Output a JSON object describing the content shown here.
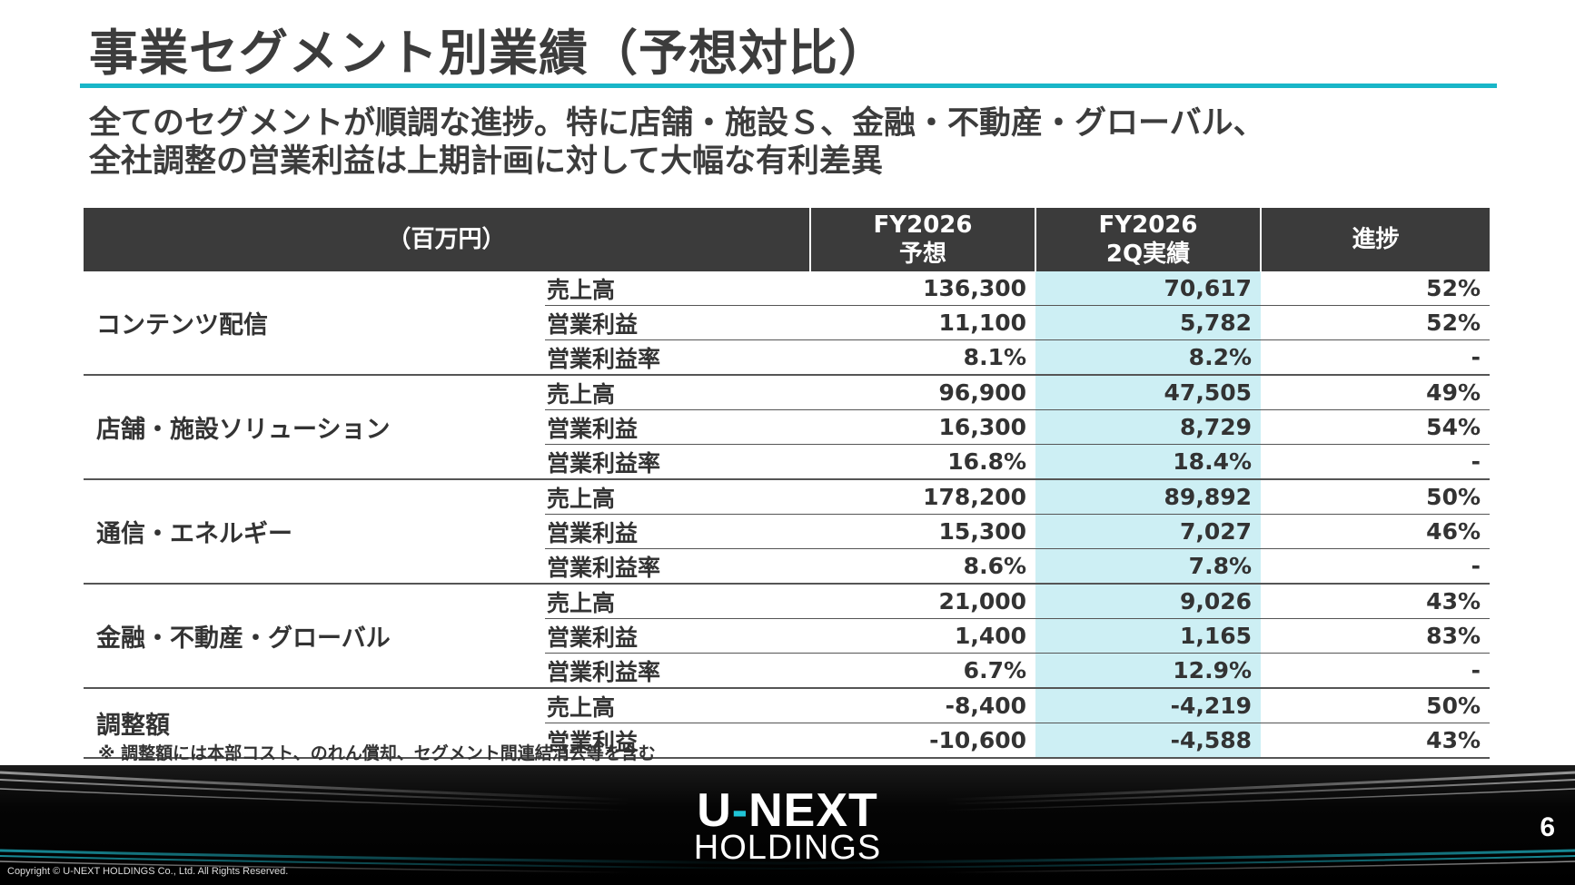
{
  "title": "事業セグメント別業績（予想対比）",
  "subtitle": {
    "line1": "全てのセグメントが順調な進捗。特に店舗・施設Ｓ、金融・不動産・グローバル、",
    "line2": "全社調整の営業利益は上期計画に対して大幅な有利差異"
  },
  "table": {
    "header": {
      "unit": "（百万円）",
      "col1_line1": "FY2026",
      "col1_line2": "予想",
      "col2_line1": "FY2026",
      "col2_line2": "2Q実績",
      "col3": "進捗"
    },
    "segments": [
      {
        "name": "コンテンツ配信",
        "rows": [
          {
            "metric": "売上高",
            "forecast": "136,300",
            "actual": "70,617",
            "progress": "52%"
          },
          {
            "metric": "営業利益",
            "forecast": "11,100",
            "actual": "5,782",
            "progress": "52%"
          },
          {
            "metric": "営業利益率",
            "forecast": "8.1%",
            "actual": "8.2%",
            "progress": "-"
          }
        ]
      },
      {
        "name": "店舗・施設ソリューション",
        "rows": [
          {
            "metric": "売上高",
            "forecast": "96,900",
            "actual": "47,505",
            "progress": "49%"
          },
          {
            "metric": "営業利益",
            "forecast": "16,300",
            "actual": "8,729",
            "progress": "54%"
          },
          {
            "metric": "営業利益率",
            "forecast": "16.8%",
            "actual": "18.4%",
            "progress": "-"
          }
        ]
      },
      {
        "name": "通信・エネルギー",
        "rows": [
          {
            "metric": "売上高",
            "forecast": "178,200",
            "actual": "89,892",
            "progress": "50%"
          },
          {
            "metric": "営業利益",
            "forecast": "15,300",
            "actual": "7,027",
            "progress": "46%"
          },
          {
            "metric": "営業利益率",
            "forecast": "8.6%",
            "actual": "7.8%",
            "progress": "-"
          }
        ]
      },
      {
        "name": "金融・不動産・グローバル",
        "rows": [
          {
            "metric": "売上高",
            "forecast": "21,000",
            "actual": "9,026",
            "progress": "43%"
          },
          {
            "metric": "営業利益",
            "forecast": "1,400",
            "actual": "1,165",
            "progress": "83%"
          },
          {
            "metric": "営業利益率",
            "forecast": "6.7%",
            "actual": "12.9%",
            "progress": "-"
          }
        ]
      },
      {
        "name": "調整額",
        "rows": [
          {
            "metric": "売上高",
            "forecast": "-8,400",
            "actual": "-4,219",
            "progress": "50%"
          },
          {
            "metric": "営業利益",
            "forecast": "-10,600",
            "actual": "-4,588",
            "progress": "43%"
          }
        ]
      }
    ]
  },
  "note": "※ 調整額には本部コスト、のれん償却、セグメント間連結消去等を含む",
  "footer": {
    "logo_u": "U",
    "logo_dash": "-",
    "logo_next": "NEXT",
    "logo_holdings": "HOLDINGS",
    "page_number": "6",
    "copyright": "Copyright © U-NEXT HOLDINGS Co., Ltd. All Rights Reserved."
  },
  "colors": {
    "accent": "#19b6c8",
    "header_bg": "#3b3b3b",
    "highlight": "#cdeff4"
  }
}
